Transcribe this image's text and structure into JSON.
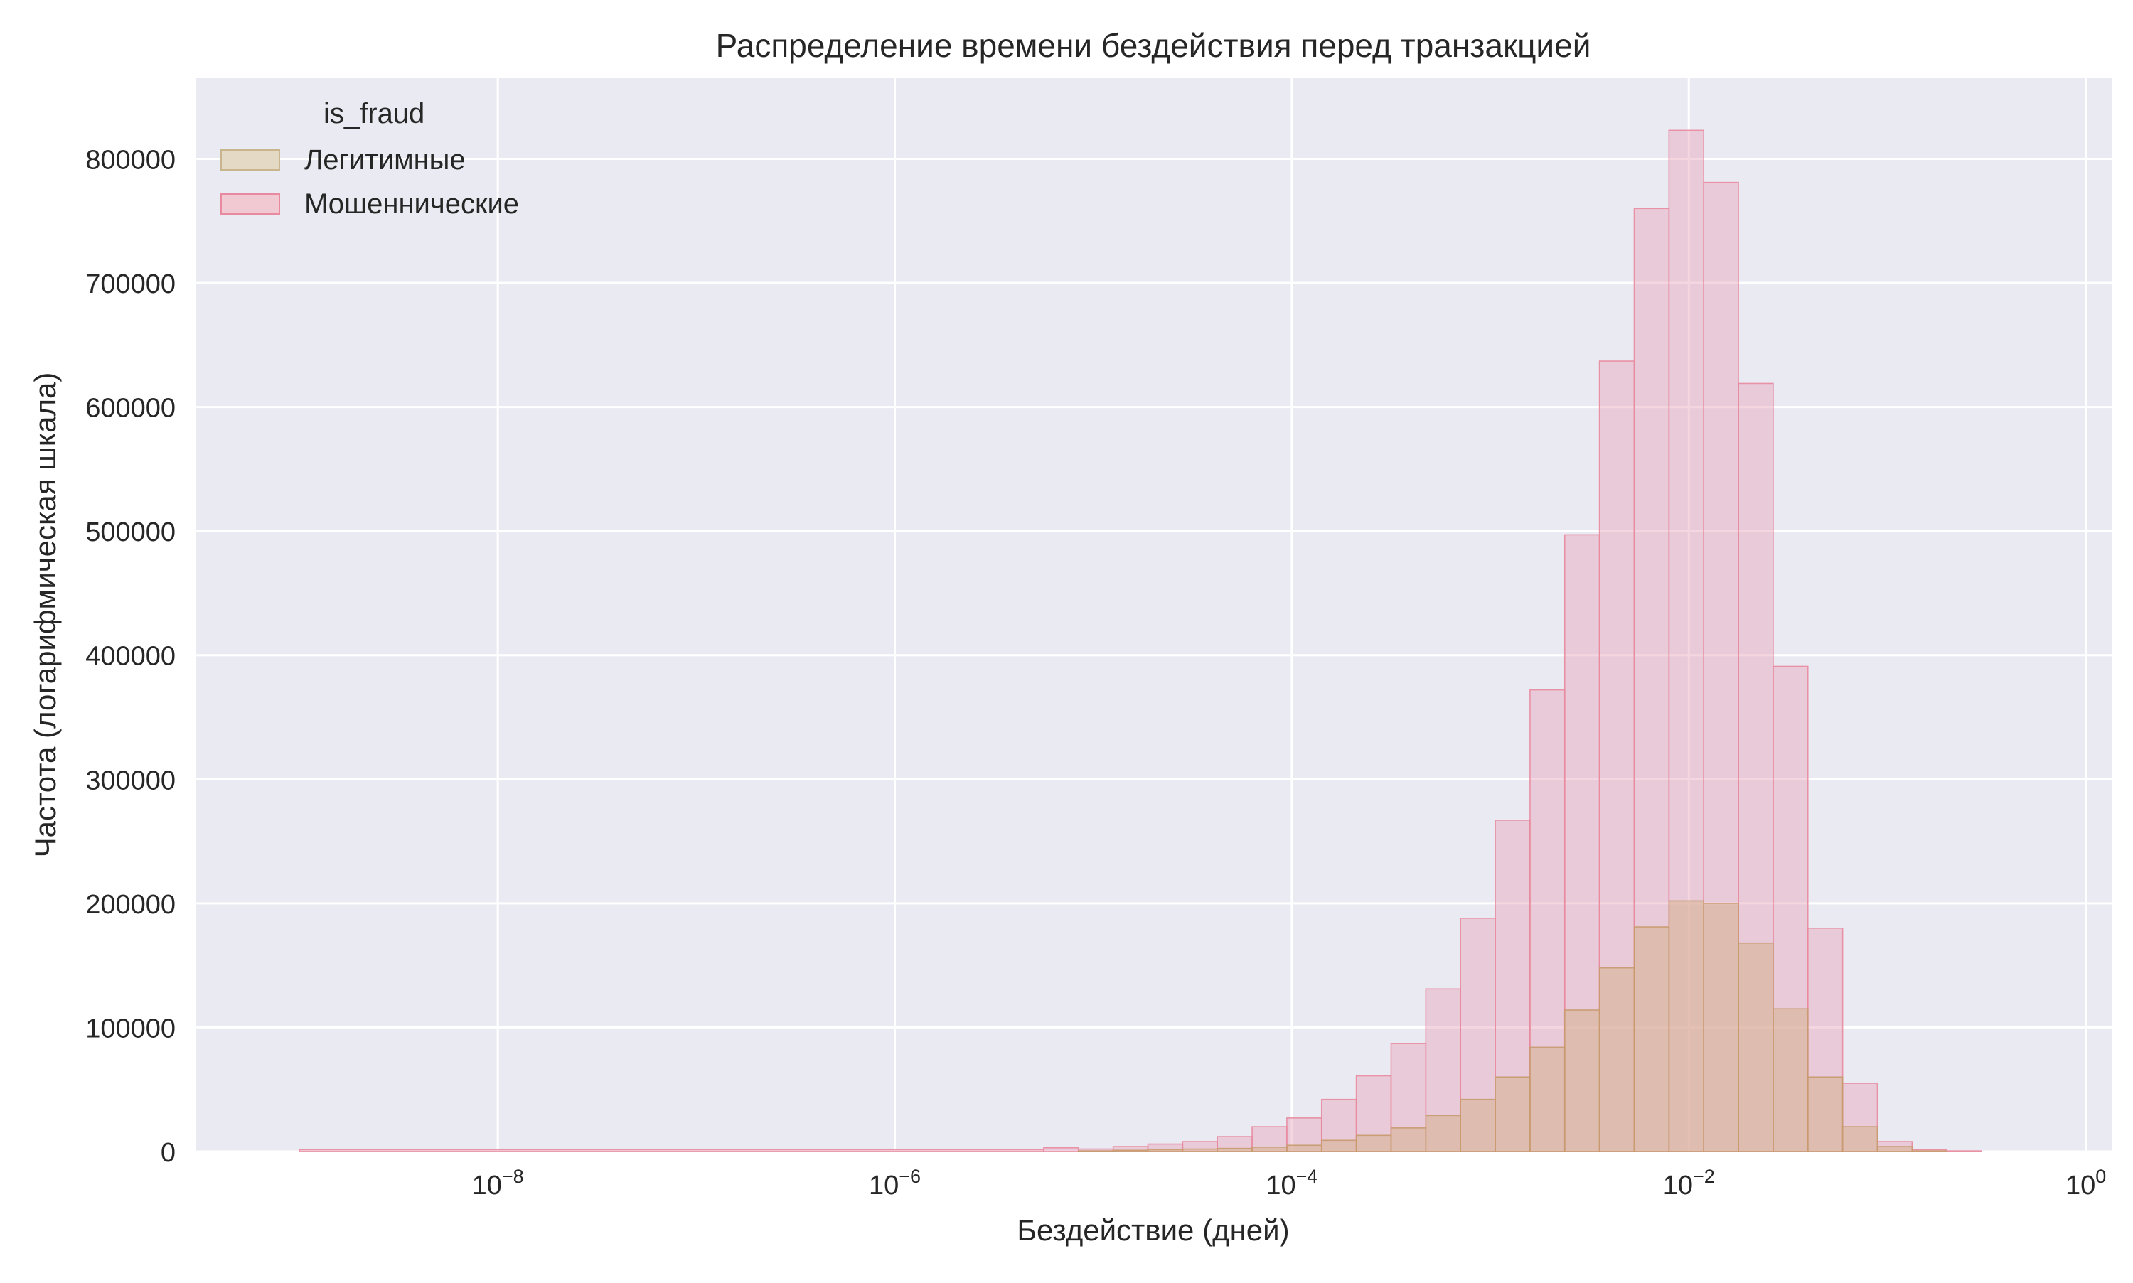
{
  "chart_data": {
    "type": "histogram",
    "title": "Распределение времени бездействия перед транзакцией",
    "xlabel": "Бездействие (дней)",
    "ylabel": "Частота (логарифмическая шкала)",
    "x_scale": "log",
    "xlim": [
      3e-10,
      1.35
    ],
    "ylim": [
      0,
      865000
    ],
    "x_ticks": [
      {
        "value": 1e-08,
        "base": "10",
        "exp": "−8"
      },
      {
        "value": 1e-06,
        "base": "10",
        "exp": "−6"
      },
      {
        "value": 0.0001,
        "base": "10",
        "exp": "−4"
      },
      {
        "value": 0.01,
        "base": "10",
        "exp": "−2"
      },
      {
        "value": 1,
        "base": "10",
        "exp": "0"
      }
    ],
    "y_ticks": [
      "0",
      "100000",
      "200000",
      "300000",
      "400000",
      "500000",
      "600000",
      "700000",
      "800000"
    ],
    "y_tick_values": [
      0,
      100000,
      200000,
      300000,
      400000,
      500000,
      600000,
      700000,
      800000
    ],
    "grid": true,
    "legend": {
      "title": "is_fraud",
      "position": "top-left"
    },
    "bin_edges_log10": [
      -9.0,
      -5.25,
      -5.075,
      -4.9,
      -4.725,
      -4.55,
      -4.375,
      -4.2,
      -4.025,
      -3.85,
      -3.675,
      -3.5,
      -3.325,
      -3.15,
      -2.975,
      -2.8,
      -2.625,
      -2.45,
      -2.275,
      -2.1,
      -1.925,
      -1.75,
      -1.575,
      -1.4,
      -1.225,
      -1.05,
      -0.875,
      -0.7,
      -0.525,
      -0.35
    ],
    "series": [
      {
        "name": "Мошеннические",
        "fill": "#e8a5bb",
        "stroke": "#e9899f",
        "values": [
          1500,
          3000,
          2000,
          4000,
          6000,
          8000,
          12000,
          20000,
          27000,
          42000,
          61000,
          87000,
          131000,
          188000,
          267000,
          372000,
          497000,
          637000,
          760000,
          823000,
          781000,
          619000,
          391000,
          180000,
          55000,
          8000,
          1500,
          500,
          0
        ]
      },
      {
        "name": "Легитимные",
        "fill": "#d8b49a",
        "stroke": "#c89a6e",
        "values": [
          0,
          0,
          500,
          1000,
          1500,
          2000,
          2500,
          3500,
          5000,
          9000,
          13000,
          19000,
          29000,
          42000,
          60000,
          84000,
          114000,
          148000,
          181000,
          202000,
          200000,
          168000,
          115000,
          60000,
          20000,
          4000,
          500,
          0,
          0
        ]
      }
    ],
    "legend_entries": [
      {
        "name": "Легитимные",
        "fill": "#e3d9c4",
        "stroke": "#c9b58c"
      },
      {
        "name": "Мошеннические",
        "fill": "#f1c9d3",
        "stroke": "#e9899f"
      }
    ]
  }
}
